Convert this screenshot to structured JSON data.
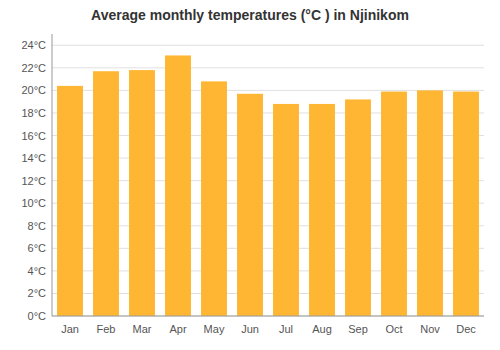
{
  "chart_data": {
    "type": "bar",
    "title": "Average monthly temperatures (°C ) in Njinikom",
    "categories": [
      "Jan",
      "Feb",
      "Mar",
      "Apr",
      "May",
      "Jun",
      "Jul",
      "Aug",
      "Sep",
      "Oct",
      "Nov",
      "Dec"
    ],
    "values": [
      20.4,
      21.7,
      21.8,
      23.1,
      20.8,
      19.7,
      18.8,
      18.8,
      19.2,
      19.9,
      20.0,
      19.9
    ],
    "color": "#FFB733",
    "ylim": [
      0,
      25
    ],
    "yticks": [
      {
        "value": 0,
        "label": "0°C"
      },
      {
        "value": 2,
        "label": "2°C"
      },
      {
        "value": 4,
        "label": "4°C"
      },
      {
        "value": 6,
        "label": "6°C"
      },
      {
        "value": 8,
        "label": "8°C"
      },
      {
        "value": 10,
        "label": "10°C"
      },
      {
        "value": 12,
        "label": "12°C"
      },
      {
        "value": 14,
        "label": "14°C"
      },
      {
        "value": 16,
        "label": "16°C"
      },
      {
        "value": 18,
        "label": "18°C"
      },
      {
        "value": 20,
        "label": "20°C"
      },
      {
        "value": 22,
        "label": "22°C"
      },
      {
        "value": 24,
        "label": "24°C"
      }
    ],
    "grid": true
  }
}
